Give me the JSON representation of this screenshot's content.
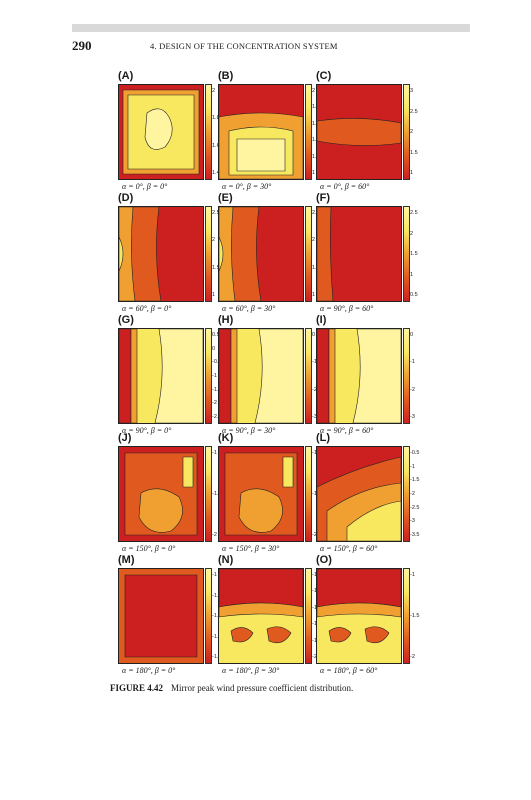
{
  "header": {
    "page_number": "290",
    "running_head": "4. DESIGN OF THE CONCENTRATION SYSTEM"
  },
  "caption": {
    "label": "FIGURE 4.42",
    "text": "Mirror peak wind pressure coefficient distribution."
  },
  "colors": {
    "low": "#cc2020",
    "mid_low": "#e05a20",
    "mid": "#f0a030",
    "high": "#f8e860",
    "peak": "#fff4a0"
  },
  "chart_data": [
    {
      "type": "heatmap",
      "label": "(A)",
      "condition": "α = 0°, β = 0°",
      "colorbar_ticks": [
        "2",
        "1.8",
        "1.6",
        "1.4"
      ],
      "pattern": "center-high"
    },
    {
      "type": "heatmap",
      "label": "(B)",
      "condition": "α = 0°, β = 30°",
      "colorbar_ticks": [
        "2",
        "1.8",
        "1.6",
        "1.4",
        "1.2",
        "1"
      ],
      "pattern": "bottom-high"
    },
    {
      "type": "heatmap",
      "label": "(C)",
      "condition": "α = 0°, β = 60°",
      "colorbar_ticks": [
        "3",
        "2.5",
        "2",
        "1.5",
        "1"
      ],
      "pattern": "bands-low"
    },
    {
      "type": "heatmap",
      "label": "(D)",
      "condition": "α = 60°, β = 0°",
      "colorbar_ticks": [
        "2.5",
        "2",
        "1.5",
        "1"
      ],
      "pattern": "left-high"
    },
    {
      "type": "heatmap",
      "label": "(E)",
      "condition": "α = 60°, β = 30°",
      "colorbar_ticks": [
        "2.5",
        "2",
        "1.5",
        "1"
      ],
      "pattern": "left-high"
    },
    {
      "type": "heatmap",
      "label": "(F)",
      "condition": "α = 90°, β = 60°",
      "colorbar_ticks": [
        "2.5",
        "2",
        "1.5",
        "1",
        "0.5"
      ],
      "pattern": "left-mid"
    },
    {
      "type": "heatmap",
      "label": "(G)",
      "condition": "α = 90°, β = 0°",
      "colorbar_ticks": [
        "0.5",
        "0",
        "-0.5",
        "-1",
        "-1.5",
        "-2",
        "-2.5"
      ],
      "pattern": "left-low"
    },
    {
      "type": "heatmap",
      "label": "(H)",
      "condition": "α = 90°, β = 30°",
      "colorbar_ticks": [
        "0",
        "-1",
        "-2",
        "-3"
      ],
      "pattern": "left-low"
    },
    {
      "type": "heatmap",
      "label": "(I)",
      "condition": "α = 90°, β = 60°",
      "colorbar_ticks": [
        "0",
        "-1",
        "-2",
        "-3"
      ],
      "pattern": "left-low"
    },
    {
      "type": "heatmap",
      "label": "(J)",
      "condition": "α = 150°, β = 0°",
      "colorbar_ticks": [
        "-1",
        "-1.5",
        "-2"
      ],
      "pattern": "patchy"
    },
    {
      "type": "heatmap",
      "label": "(K)",
      "condition": "α = 150°, β = 30°",
      "colorbar_ticks": [
        "-1",
        "-1.5",
        "-2"
      ],
      "pattern": "patchy"
    },
    {
      "type": "heatmap",
      "label": "(L)",
      "condition": "α = 150°, β = 60°",
      "colorbar_ticks": [
        "-0.5",
        "-1",
        "-1.5",
        "-2",
        "-2.5",
        "-3",
        "-3.5"
      ],
      "pattern": "diagonal"
    },
    {
      "type": "heatmap",
      "label": "(M)",
      "condition": "α = 180°, β = 0°",
      "colorbar_ticks": [
        "-1",
        "-1.2",
        "-1.4",
        "-1.6",
        "-1.8"
      ],
      "pattern": "all-low"
    },
    {
      "type": "heatmap",
      "label": "(N)",
      "condition": "α = 180°, β = 30°",
      "colorbar_ticks": [
        "-1",
        "-1.2",
        "-1.4",
        "-1.6",
        "-1.8",
        "-2"
      ],
      "pattern": "top-low"
    },
    {
      "type": "heatmap",
      "label": "(O)",
      "condition": "α = 180°, β = 60°",
      "colorbar_ticks": [
        "-1",
        "-1.5",
        "-2"
      ],
      "pattern": "top-low"
    }
  ]
}
